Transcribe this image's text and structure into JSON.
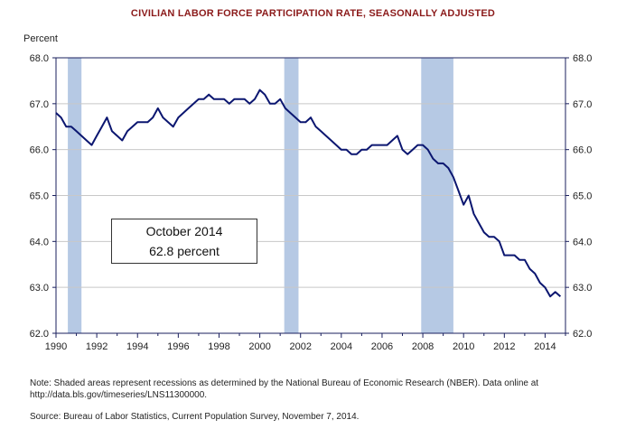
{
  "chart_data": {
    "type": "line",
    "title": "CIVILIAN LABOR FORCE PARTICIPATION RATE, SEASONALLY ADJUSTED",
    "ylabel": "Percent",
    "xlabel": "",
    "xlim": [
      1990,
      2015
    ],
    "ylim": [
      62.0,
      68.0
    ],
    "x_ticks": [
      "1990",
      "1992",
      "1994",
      "1996",
      "1998",
      "2000",
      "2002",
      "2004",
      "2006",
      "2008",
      "2010",
      "2012",
      "2014"
    ],
    "y_ticks": [
      "62.0",
      "63.0",
      "64.0",
      "65.0",
      "66.0",
      "67.0",
      "68.0"
    ],
    "grid": "horizontal",
    "recessions": [
      [
        1990.58,
        1991.25
      ],
      [
        2001.2,
        2001.9
      ],
      [
        2007.92,
        2009.5
      ]
    ],
    "series": [
      {
        "x": [
          1990.0,
          1990.25,
          1990.5,
          1990.75,
          1991.0,
          1991.25,
          1991.5,
          1991.75,
          1992.0,
          1992.25,
          1992.5,
          1992.75,
          1993.0,
          1993.25,
          1993.5,
          1993.75,
          1994.0,
          1994.25,
          1994.5,
          1994.75,
          1995.0,
          1995.25,
          1995.5,
          1995.75,
          1996.0,
          1996.25,
          1996.5,
          1996.75,
          1997.0,
          1997.25,
          1997.5,
          1997.75,
          1998.0,
          1998.25,
          1998.5,
          1998.75,
          1999.0,
          1999.25,
          1999.5,
          1999.75,
          2000.0,
          2000.25,
          2000.5,
          2000.75,
          2001.0,
          2001.25,
          2001.5,
          2001.75,
          2002.0,
          2002.25,
          2002.5,
          2002.75,
          2003.0,
          2003.25,
          2003.5,
          2003.75,
          2004.0,
          2004.25,
          2004.5,
          2004.75,
          2005.0,
          2005.25,
          2005.5,
          2005.75,
          2006.0,
          2006.25,
          2006.5,
          2006.75,
          2007.0,
          2007.25,
          2007.5,
          2007.75,
          2008.0,
          2008.25,
          2008.5,
          2008.75,
          2009.0,
          2009.25,
          2009.5,
          2009.75,
          2010.0,
          2010.25,
          2010.5,
          2010.75,
          2011.0,
          2011.25,
          2011.5,
          2011.75,
          2012.0,
          2012.25,
          2012.5,
          2012.75,
          2013.0,
          2013.25,
          2013.5,
          2013.75,
          2014.0,
          2014.25,
          2014.5,
          2014.75
        ],
        "values": [
          66.8,
          66.7,
          66.5,
          66.5,
          66.4,
          66.3,
          66.2,
          66.1,
          66.3,
          66.5,
          66.7,
          66.4,
          66.3,
          66.2,
          66.4,
          66.5,
          66.6,
          66.6,
          66.6,
          66.7,
          66.9,
          66.7,
          66.6,
          66.5,
          66.7,
          66.8,
          66.9,
          67.0,
          67.1,
          67.1,
          67.2,
          67.1,
          67.1,
          67.1,
          67.0,
          67.1,
          67.1,
          67.1,
          67.0,
          67.1,
          67.3,
          67.2,
          67.0,
          67.0,
          67.1,
          66.9,
          66.8,
          66.7,
          66.6,
          66.6,
          66.7,
          66.5,
          66.4,
          66.3,
          66.2,
          66.1,
          66.0,
          66.0,
          65.9,
          65.9,
          66.0,
          66.0,
          66.1,
          66.1,
          66.1,
          66.1,
          66.2,
          66.3,
          66.0,
          65.9,
          66.0,
          66.1,
          66.1,
          66.0,
          65.8,
          65.7,
          65.7,
          65.6,
          65.4,
          65.1,
          64.8,
          65.0,
          64.6,
          64.4,
          64.2,
          64.1,
          64.1,
          64.0,
          63.7,
          63.7,
          63.7,
          63.6,
          63.6,
          63.4,
          63.3,
          63.1,
          63.0,
          62.8,
          62.9,
          62.8
        ],
        "color": "#0b1670"
      }
    ]
  },
  "callout": {
    "line1": "October 2014",
    "line2": "62.8 percent"
  },
  "note": "Note:  Shaded areas represent recessions as determined by the National Bureau of Economic Research (NBER).  Data online at http://data.bls.gov/timeseries/LNS11300000.",
  "source": "Source:  Bureau of Labor Statistics, Current Population Survey, November 7, 2014.",
  "colors": {
    "line": "#0b1670",
    "recession": "#b6c9e4",
    "title": "#8b1a1a",
    "axis": "#1a1f5e"
  }
}
